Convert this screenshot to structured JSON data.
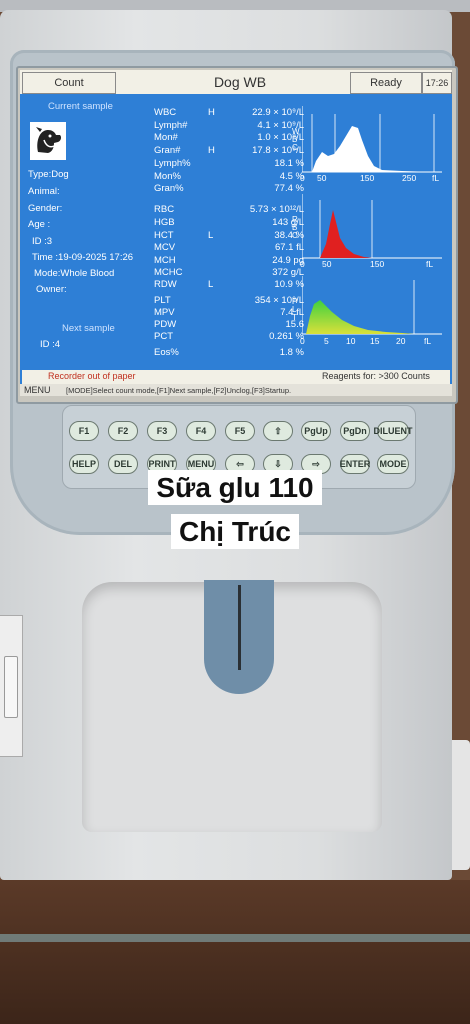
{
  "titlebar": {
    "count": "Count",
    "mode": "Dog  WB",
    "ready": "Ready",
    "clock": "17:26"
  },
  "patient": {
    "current_sample": "Current sample",
    "type": "Type:Dog",
    "animal": "Animal:",
    "gender": "Gender:",
    "age": "Age   :",
    "id": "ID     :3",
    "time": "Time :19-09-2025 17:26",
    "mode": "Mode:Whole Blood",
    "owner": "Owner:",
    "next_sample": "Next sample",
    "next_id": "ID     :4"
  },
  "results": [
    {
      "name": "WBC",
      "flag": "H",
      "value": "22.9 × 10⁹/L"
    },
    {
      "name": "Lymph#",
      "flag": "",
      "value": "4.1 × 10⁹/L"
    },
    {
      "name": "Mon#",
      "flag": "",
      "value": "1.0 × 10⁹/L"
    },
    {
      "name": "Gran#",
      "flag": "H",
      "value": "17.8 × 10⁹/L"
    },
    {
      "name": "Lymph%",
      "flag": "",
      "value": "18.1 %"
    },
    {
      "name": "Mon%",
      "flag": "",
      "value": "4.5 %"
    },
    {
      "name": "Gran%",
      "flag": "",
      "value": "77.4 %"
    },
    {
      "name": "RBC",
      "flag": "",
      "value": "5.73 × 10¹²/L"
    },
    {
      "name": "HGB",
      "flag": "",
      "value": "143 g/L"
    },
    {
      "name": "HCT",
      "flag": "L",
      "value": "38.4 %"
    },
    {
      "name": "MCV",
      "flag": "",
      "value": "67.1 fL"
    },
    {
      "name": "MCH",
      "flag": "",
      "value": "24.9 pg"
    },
    {
      "name": "MCHC",
      "flag": "",
      "value": "372 g/L"
    },
    {
      "name": "RDW",
      "flag": "L",
      "value": "10.9 %"
    },
    {
      "name": "PLT",
      "flag": "",
      "value": "354 × 10⁹/L"
    },
    {
      "name": "MPV",
      "flag": "",
      "value": "7.4 fL"
    },
    {
      "name": "PDW",
      "flag": "",
      "value": "15.6"
    },
    {
      "name": "PCT",
      "flag": "",
      "value": "0.261 %"
    },
    {
      "name": "Eos%",
      "flag": "",
      "value": "1.8 %"
    }
  ],
  "histograms": {
    "wbc": {
      "label": [
        "W",
        "B",
        "C"
      ],
      "ticks": [
        "0",
        "50",
        "150",
        "250",
        "fL"
      ]
    },
    "rbc": {
      "label": [
        "R",
        "B",
        "C"
      ],
      "ticks": [
        "0",
        "50",
        "150",
        "fL"
      ]
    },
    "plt": {
      "label": [
        "P",
        "L",
        "T"
      ],
      "ticks": [
        "0",
        "5",
        "10",
        "15",
        "20",
        "fL"
      ]
    }
  },
  "statusbar": {
    "left": "Recorder out of paper",
    "right": "Reagents for: >300 Counts"
  },
  "menubar": {
    "menu": "MENU",
    "text": "[MODE]Select count mode,[F1]Next sample,[F2]Unclog,[F3]Startup."
  },
  "keys": {
    "row1": [
      "F1",
      "F2",
      "F3",
      "F4",
      "F5",
      "⇧",
      "PgUp",
      "PgDn",
      "DILUENT"
    ],
    "row2": [
      "HELP",
      "DEL",
      "PRINT",
      "MENU",
      "⇦",
      "⇩",
      "⇨",
      "ENTER",
      "MODE"
    ]
  },
  "caption": {
    "line1": "Sữa glu 110",
    "line2": "Chị Trúc"
  },
  "colors": {
    "screen": "#2e7fd6",
    "wbc_fill": "#ffffff",
    "rbc_fill": "#e02020",
    "plt_fill_top": "#3fd13f",
    "plt_fill_bottom": "#d9e03a"
  }
}
